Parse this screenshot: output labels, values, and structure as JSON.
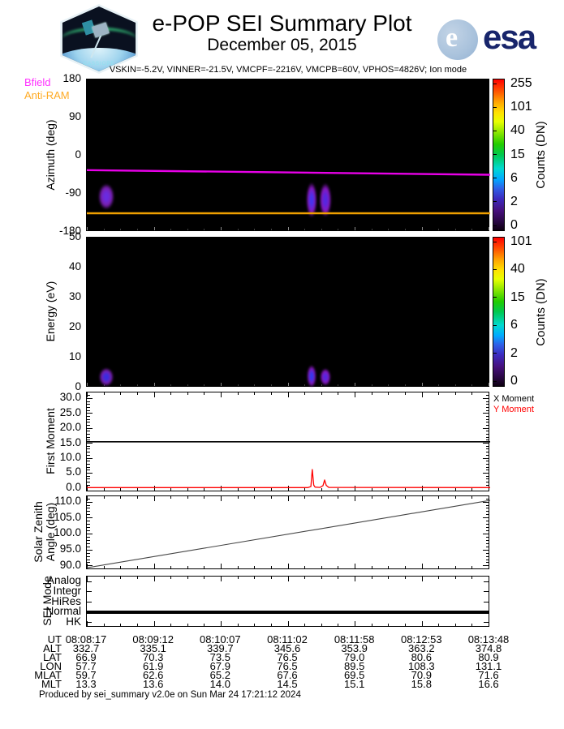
{
  "header": {
    "title": "e-POP SEI Summary Plot",
    "date": "December 05, 2015",
    "settings_line": "VSKIN=-5.2V, VINNER=-21.5V, VMCPF=-2216V, VMCPB=60V, VPHOS=4826V; Ion mode",
    "patch_text": "CASSIOPE",
    "esa_text": "esa",
    "esa_e": "e"
  },
  "chart_data": [
    {
      "id": "azimuth-spectrogram",
      "type": "heatmap",
      "ylabel": "Azimuth (deg)",
      "ylim": [
        -180,
        180
      ],
      "yticks": [
        {
          "v": 180,
          "label": "180"
        },
        {
          "v": 90,
          "label": "90"
        },
        {
          "v": 0,
          "label": "0"
        },
        {
          "v": -90,
          "label": "-90"
        },
        {
          "v": -180,
          "label": "-180"
        }
      ],
      "legend": [
        {
          "label": "Bfield",
          "color": "#ff30ff"
        },
        {
          "label": "Anti-RAM",
          "color": "#ffaa22"
        }
      ],
      "series": [
        {
          "name": "Bfield",
          "color": "#e800e8",
          "width": 2.4,
          "points": [
            [
              0,
              -34
            ],
            [
              1,
              -45
            ]
          ]
        },
        {
          "name": "Anti-RAM",
          "color": "#f0a000",
          "width": 2.6,
          "points": [
            [
              0,
              -136
            ],
            [
              1,
              -136
            ]
          ]
        }
      ],
      "blobs": [
        {
          "x": 0.049,
          "y": -96,
          "w": 12,
          "h": 28,
          "core": "#6a2be0",
          "halo": "#7a1fb0"
        },
        {
          "x": 0.558,
          "y": -104,
          "w": 8,
          "h": 38,
          "core": "#4434ee",
          "halo": "#8818c0"
        },
        {
          "x": 0.591,
          "y": -104,
          "w": 9,
          "h": 36,
          "core": "#5526e0",
          "halo": "#8818c0"
        }
      ],
      "colorbar": {
        "label": "Counts (DN)",
        "ticks": [
          "255",
          "101",
          "40",
          "15",
          "6",
          "2",
          "0"
        ]
      }
    },
    {
      "id": "energy-spectrogram",
      "type": "heatmap",
      "ylabel": "Energy (eV)",
      "ylim": [
        0,
        50
      ],
      "yticks": [
        {
          "v": 50,
          "label": "50"
        },
        {
          "v": 40,
          "label": "40"
        },
        {
          "v": 30,
          "label": "30"
        },
        {
          "v": 20,
          "label": "20"
        },
        {
          "v": 10,
          "label": "10"
        },
        {
          "v": 0,
          "label": "0"
        }
      ],
      "series": [],
      "blobs": [
        {
          "x": 0.049,
          "y": 3.5,
          "w": 11,
          "h": 20,
          "core": "#3a2be0",
          "halo": "#7a1fb0"
        },
        {
          "x": 0.558,
          "y": 3.8,
          "w": 7,
          "h": 24,
          "core": "#2f3af0",
          "halo": "#8818c0"
        },
        {
          "x": 0.591,
          "y": 3.5,
          "w": 8,
          "h": 18,
          "core": "#5526e0",
          "halo": "#8818c0"
        }
      ],
      "colorbar": {
        "label": "Counts (DN)",
        "ticks": [
          "101",
          "40",
          "15",
          "6",
          "2",
          "0"
        ]
      }
    },
    {
      "id": "first-moment",
      "type": "line",
      "ylabel": "First Moment",
      "ylim": [
        -1.4,
        32
      ],
      "yticks": [
        {
          "v": 30,
          "label": "30.0"
        },
        {
          "v": 25,
          "label": "25.0"
        },
        {
          "v": 20,
          "label": "20.0"
        },
        {
          "v": 15,
          "label": "15.0"
        },
        {
          "v": 10,
          "label": "10.0"
        },
        {
          "v": 5,
          "label": "5.0"
        },
        {
          "v": 0,
          "label": "0.0"
        }
      ],
      "legend": [
        {
          "label": "X Moment",
          "color": "#000000"
        },
        {
          "label": "Y Moment",
          "color": "#ff0000"
        }
      ],
      "series": [
        {
          "name": "X Moment",
          "color": "#000000",
          "width": 1.6,
          "points": [
            [
              0,
              15.5
            ],
            [
              1,
              15.5
            ]
          ]
        },
        {
          "name": "Y Moment",
          "color": "#ff0000",
          "width": 1.3,
          "points": [
            [
              0,
              0.15
            ],
            [
              0.548,
              0.15
            ],
            [
              0.5555,
              0.5
            ],
            [
              0.559,
              6.2
            ],
            [
              0.5625,
              1.0
            ],
            [
              0.566,
              0.3
            ],
            [
              0.578,
              0.2
            ],
            [
              0.5855,
              0.8
            ],
            [
              0.5895,
              2.7
            ],
            [
              0.5935,
              0.9
            ],
            [
              0.6,
              0.2
            ],
            [
              1,
              0.15
            ]
          ]
        }
      ]
    },
    {
      "id": "solar-zenith-angle",
      "type": "line",
      "ylabel_lines": [
        "Solar Zenith",
        "Angle (deg)"
      ],
      "ylim": [
        88.7,
        111.8
      ],
      "yticks": [
        {
          "v": 110,
          "label": "110.0"
        },
        {
          "v": 105,
          "label": "105.0"
        },
        {
          "v": 100,
          "label": "100.0"
        },
        {
          "v": 95,
          "label": "95.0"
        },
        {
          "v": 90,
          "label": "90.0"
        }
      ],
      "series": [
        {
          "name": "SZA",
          "color": "#444444",
          "width": 1.1,
          "points": [
            [
              0,
              89.4
            ],
            [
              1,
              110.5
            ]
          ]
        }
      ]
    },
    {
      "id": "sei-mode",
      "type": "line",
      "ylabel": "SEI Mode",
      "categories": [
        "Analog",
        "Integr",
        "HiRes",
        "Normal",
        "HK"
      ],
      "active_mode": "Normal",
      "line_color": "#000000"
    }
  ],
  "time_axis": {
    "ticks": [
      "08:08:17",
      "08:09:12",
      "08:10:07",
      "08:11:02",
      "08:11:58",
      "08:12:53",
      "08:13:48"
    ]
  },
  "table": {
    "rows": [
      {
        "label": "UT",
        "values": [
          "08:08:17",
          "08:09:12",
          "08:10:07",
          "08:11:02",
          "08:11:58",
          "08:12:53",
          "08:13:48"
        ]
      },
      {
        "label": "ALT",
        "values": [
          "332.7",
          "335.1",
          "339.7",
          "345.6",
          "353.9",
          "363.2",
          "374.8"
        ]
      },
      {
        "label": "LAT",
        "values": [
          "66.9",
          "70.3",
          "73.5",
          "76.5",
          "79.0",
          "80.6",
          "80.9"
        ]
      },
      {
        "label": "LON",
        "values": [
          "57.7",
          "61.9",
          "67.9",
          "76.5",
          "89.5",
          "108.3",
          "131.1"
        ]
      },
      {
        "label": "MLAT",
        "values": [
          "59.7",
          "62.6",
          "65.2",
          "67.6",
          "69.5",
          "70.9",
          "71.6"
        ]
      },
      {
        "label": "MLT",
        "values": [
          "13.3",
          "13.6",
          "14.0",
          "14.5",
          "15.1",
          "15.8",
          "16.6"
        ]
      }
    ]
  },
  "footer": "Produced by sei_summary v2.0e on Sun Mar 24 17:21:12 2024"
}
